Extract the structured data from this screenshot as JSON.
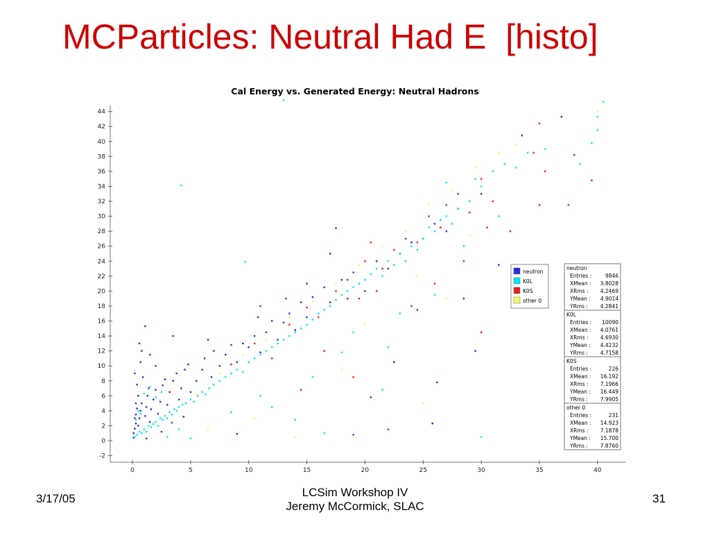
{
  "slide": {
    "title": "MCParticles: Neutral Had E  [histo]",
    "footer_left": "3/17/05",
    "footer_center_line1": "LCSim Workshop IV",
    "footer_center_line2": "Jeremy McCormick, SLAC",
    "footer_right": "31"
  },
  "chart_data": {
    "type": "scatter",
    "title": "Cal Energy vs. Generated Energy: Neutral Hadrons",
    "xlabel": "",
    "ylabel": "",
    "xlim": [
      -1.5,
      42.5
    ],
    "ylim": [
      -2.6,
      45.5
    ],
    "xticks": [
      0,
      5,
      10,
      15,
      20,
      25,
      30,
      35,
      40
    ],
    "yticks": [
      -2,
      0,
      2,
      4,
      6,
      8,
      10,
      12,
      14,
      16,
      18,
      20,
      22,
      24,
      26,
      28,
      30,
      32,
      34,
      36,
      38,
      40,
      42,
      44
    ],
    "legend_position": "right",
    "series": [
      {
        "name": "neutron",
        "color": "#2a2ae0",
        "stats": {
          "Entries": "9846",
          "XMean": "3.8028",
          "XRms": "4.2469",
          "YMean": "4.9014",
          "YRms": "4.2841"
        },
        "points": [
          [
            0.1,
            0.4
          ],
          [
            0.1,
            1.0
          ],
          [
            0.2,
            1.6
          ],
          [
            0.3,
            2.3
          ],
          [
            0.2,
            3.0
          ],
          [
            0.3,
            3.5
          ],
          [
            0.4,
            4.3
          ],
          [
            0.3,
            5.0
          ],
          [
            0.5,
            2.0
          ],
          [
            0.6,
            3.0
          ],
          [
            0.7,
            4.0
          ],
          [
            0.8,
            5.0
          ],
          [
            0.5,
            6.0
          ],
          [
            1.0,
            1.5
          ],
          [
            1.1,
            3.3
          ],
          [
            1.2,
            4.5
          ],
          [
            1.3,
            6.0
          ],
          [
            1.4,
            7.0
          ],
          [
            1.5,
            2.5
          ],
          [
            1.6,
            4.2
          ],
          [
            1.8,
            5.5
          ],
          [
            2.0,
            6.8
          ],
          [
            2.2,
            3.6
          ],
          [
            2.4,
            5.2
          ],
          [
            2.6,
            7.4
          ],
          [
            2.8,
            8.2
          ],
          [
            3.0,
            4.8
          ],
          [
            3.2,
            6.5
          ],
          [
            3.5,
            8.0
          ],
          [
            3.8,
            9.0
          ],
          [
            4.0,
            5.5
          ],
          [
            4.2,
            7.0
          ],
          [
            4.5,
            9.5
          ],
          [
            4.8,
            10.2
          ],
          [
            5.0,
            6.5
          ],
          [
            5.5,
            8.0
          ],
          [
            6.0,
            9.5
          ],
          [
            6.2,
            11.0
          ],
          [
            6.8,
            8.5
          ],
          [
            7.0,
            12.0
          ],
          [
            7.5,
            10.0
          ],
          [
            8.0,
            11.5
          ],
          [
            8.5,
            12.8
          ],
          [
            9.0,
            10.5
          ],
          [
            9.5,
            13.0
          ],
          [
            10.0,
            12.5
          ],
          [
            10.5,
            14.0
          ],
          [
            11.0,
            11.8
          ],
          [
            11.5,
            14.5
          ],
          [
            12.0,
            16.0
          ],
          [
            12.5,
            13.5
          ],
          [
            13.0,
            15.8
          ],
          [
            13.5,
            17.0
          ],
          [
            14.0,
            14.8
          ],
          [
            14.5,
            18.5
          ],
          [
            15.0,
            16.5
          ],
          [
            15.5,
            19.2
          ],
          [
            16.0,
            17.0
          ],
          [
            16.5,
            20.5
          ],
          [
            17.0,
            18.5
          ],
          [
            18.0,
            21.5
          ],
          [
            18.5,
            19.0
          ],
          [
            19.0,
            22.5
          ],
          [
            20.0,
            20.0
          ],
          [
            21.0,
            24.0
          ],
          [
            22.0,
            23.0
          ],
          [
            23.0,
            25.0
          ],
          [
            24.0,
            26.5
          ],
          [
            25.0,
            27.0
          ],
          [
            26.0,
            29.0
          ],
          [
            27.0,
            28.0
          ],
          [
            28.0,
            31.0
          ],
          [
            30.0,
            33.0
          ],
          [
            33.5,
            40.8
          ],
          [
            36.9,
            43.3
          ],
          [
            17.5,
            28.4
          ],
          [
            15.0,
            21.0
          ],
          [
            13.2,
            19.0
          ],
          [
            10.8,
            16.5
          ],
          [
            2.0,
            10.0
          ],
          [
            1.1,
            15.3
          ],
          [
            0.8,
            12.0
          ],
          [
            3.5,
            14.0
          ],
          [
            6.5,
            13.5
          ],
          [
            17.0,
            25.0
          ],
          [
            22.5,
            10.5
          ],
          [
            20.5,
            5.8
          ],
          [
            9.0,
            0.9
          ],
          [
            19.0,
            0.8
          ],
          [
            29.5,
            12.0
          ],
          [
            25.8,
            2.3
          ],
          [
            1.2,
            0.3
          ],
          [
            2.5,
            1.2
          ],
          [
            3.4,
            2.4
          ],
          [
            4.4,
            3.2
          ],
          [
            0.9,
            8.5
          ],
          [
            0.4,
            7.5
          ],
          [
            0.2,
            9.0
          ],
          [
            0.7,
            10.5
          ],
          [
            1.5,
            11.5
          ],
          [
            0.6,
            13.0
          ],
          [
            26.2,
            7.8
          ],
          [
            24.5,
            17.5
          ],
          [
            31.5,
            23.5
          ],
          [
            28.5,
            19.0
          ]
        ]
      },
      {
        "name": "K0L",
        "color": "#00e8ee",
        "stats": {
          "Entries": "10090",
          "XMean": "4.0761",
          "XRms": "4.6930",
          "YMean": "4.4232",
          "YRms": "4.7158"
        },
        "points": [
          [
            0.2,
            0.5
          ],
          [
            0.4,
            0.8
          ],
          [
            0.6,
            1.2
          ],
          [
            0.8,
            1.0
          ],
          [
            1.0,
            1.5
          ],
          [
            1.2,
            1.2
          ],
          [
            1.4,
            2.0
          ],
          [
            1.6,
            1.8
          ],
          [
            1.8,
            2.2
          ],
          [
            2.0,
            2.5
          ],
          [
            2.2,
            2.0
          ],
          [
            2.4,
            3.0
          ],
          [
            2.6,
            2.8
          ],
          [
            2.8,
            3.3
          ],
          [
            3.0,
            3.0
          ],
          [
            3.2,
            3.8
          ],
          [
            3.4,
            3.5
          ],
          [
            3.6,
            4.2
          ],
          [
            3.8,
            4.0
          ],
          [
            4.0,
            4.5
          ],
          [
            4.3,
            4.8
          ],
          [
            4.6,
            5.0
          ],
          [
            5.0,
            5.5
          ],
          [
            5.3,
            5.2
          ],
          [
            5.6,
            6.0
          ],
          [
            6.0,
            6.5
          ],
          [
            6.3,
            6.2
          ],
          [
            6.6,
            7.0
          ],
          [
            7.0,
            7.5
          ],
          [
            7.5,
            8.0
          ],
          [
            8.0,
            8.5
          ],
          [
            8.5,
            9.0
          ],
          [
            9.0,
            9.5
          ],
          [
            9.5,
            9.2
          ],
          [
            10.0,
            10.5
          ],
          [
            10.5,
            11.0
          ],
          [
            11.0,
            11.5
          ],
          [
            11.5,
            12.0
          ],
          [
            12.0,
            12.5
          ],
          [
            12.5,
            13.0
          ],
          [
            13.0,
            13.5
          ],
          [
            13.5,
            14.0
          ],
          [
            14.0,
            14.5
          ],
          [
            14.5,
            15.0
          ],
          [
            15.0,
            15.5
          ],
          [
            15.5,
            16.2
          ],
          [
            16.0,
            17.0
          ],
          [
            16.5,
            17.5
          ],
          [
            17.0,
            18.0
          ],
          [
            17.5,
            18.8
          ],
          [
            18.0,
            19.5
          ],
          [
            18.5,
            20.0
          ],
          [
            19.0,
            20.5
          ],
          [
            19.5,
            21.0
          ],
          [
            20.0,
            21.5
          ],
          [
            20.5,
            22.3
          ],
          [
            21.0,
            23.0
          ],
          [
            21.5,
            22.0
          ],
          [
            22.0,
            24.0
          ],
          [
            22.5,
            23.5
          ],
          [
            23.0,
            25.0
          ],
          [
            23.5,
            24.0
          ],
          [
            24.0,
            26.0
          ],
          [
            24.5,
            25.5
          ],
          [
            25.0,
            27.0
          ],
          [
            25.5,
            28.5
          ],
          [
            26.0,
            28.0
          ],
          [
            26.5,
            29.5
          ],
          [
            27.0,
            30.0
          ],
          [
            27.5,
            29.0
          ],
          [
            28.0,
            31.0
          ],
          [
            29.0,
            32.0
          ],
          [
            30.0,
            34.0
          ],
          [
            31.0,
            36.0
          ],
          [
            32.0,
            37.0
          ],
          [
            33.0,
            36.5
          ],
          [
            34.0,
            38.5
          ],
          [
            35.5,
            39.0
          ],
          [
            38.5,
            37.0
          ],
          [
            39.5,
            39.8
          ],
          [
            40.0,
            41.5
          ],
          [
            40.0,
            43.3
          ],
          [
            4.2,
            34.1
          ],
          [
            9.7,
            23.9
          ],
          [
            13.0,
            45.5
          ],
          [
            40.5,
            45.3
          ],
          [
            1.0,
            6.3
          ],
          [
            1.5,
            7.2
          ],
          [
            2.0,
            5.8
          ],
          [
            2.5,
            6.5
          ],
          [
            0.5,
            4.0
          ],
          [
            0.3,
            2.8
          ],
          [
            0.7,
            3.6
          ],
          [
            3.0,
            0.5
          ],
          [
            4.0,
            1.5
          ],
          [
            5.0,
            0.3
          ],
          [
            8.5,
            3.8
          ],
          [
            12.0,
            4.5
          ],
          [
            14.0,
            2.8
          ],
          [
            16.5,
            1.0
          ],
          [
            21.5,
            6.8
          ],
          [
            30.0,
            0.5
          ],
          [
            26.0,
            19.5
          ],
          [
            23.0,
            17.0
          ],
          [
            19.0,
            14.5
          ],
          [
            27.0,
            34.5
          ],
          [
            29.5,
            35.0
          ],
          [
            31.5,
            30.0
          ],
          [
            28.5,
            26.0
          ],
          [
            22.0,
            12.5
          ],
          [
            18.0,
            11.8
          ],
          [
            15.5,
            8.5
          ],
          [
            11.0,
            6.0
          ]
        ]
      },
      {
        "name": "K0S",
        "color": "#ee1c1c",
        "stats": {
          "Entries": "226",
          "XMean": "16.192",
          "XRms": "7.1966",
          "YMean": "16.449",
          "YRms": "7.9905"
        },
        "points": [
          [
            8.5,
            10.2
          ],
          [
            10.5,
            13.0
          ],
          [
            12.0,
            11.0
          ],
          [
            13.5,
            15.5
          ],
          [
            15.0,
            17.8
          ],
          [
            16.0,
            16.5
          ],
          [
            17.5,
            20.0
          ],
          [
            18.5,
            21.5
          ],
          [
            19.5,
            19.0
          ],
          [
            20.0,
            24.0
          ],
          [
            21.5,
            23.0
          ],
          [
            22.5,
            25.5
          ],
          [
            23.5,
            27.0
          ],
          [
            24.5,
            26.5
          ],
          [
            25.5,
            30.0
          ],
          [
            26.5,
            28.5
          ],
          [
            27.0,
            31.5
          ],
          [
            28.0,
            33.0
          ],
          [
            29.0,
            30.5
          ],
          [
            30.0,
            35.0
          ],
          [
            31.0,
            32.0
          ],
          [
            32.5,
            28.0
          ],
          [
            34.5,
            38.5
          ],
          [
            35.0,
            31.5
          ],
          [
            35.5,
            36.0
          ],
          [
            38.0,
            38.2
          ],
          [
            39.5,
            34.8
          ],
          [
            35.0,
            42.4
          ],
          [
            37.5,
            31.5
          ],
          [
            30.5,
            28.5
          ],
          [
            21.0,
            20.0
          ],
          [
            19.0,
            8.5
          ],
          [
            16.5,
            12.0
          ],
          [
            14.5,
            6.8
          ],
          [
            24.0,
            18.0
          ],
          [
            26.0,
            21.0
          ],
          [
            28.5,
            24.0
          ],
          [
            20.5,
            26.5
          ],
          [
            11.0,
            18.0
          ],
          [
            22.0,
            1.5
          ],
          [
            30.0,
            14.5
          ]
        ]
      },
      {
        "name": "other 0",
        "color": "#f6f66a",
        "stats": {
          "Entries": "231",
          "XMean": "14.923",
          "XRms": "7.1878",
          "YMean": "15.700",
          "YRms": "7.8760"
        },
        "points": [
          [
            3.5,
            2.5
          ],
          [
            5.5,
            6.2
          ],
          [
            7.5,
            9.0
          ],
          [
            9.5,
            11.5
          ],
          [
            11.5,
            13.5
          ],
          [
            13.5,
            16.5
          ],
          [
            15.5,
            18.5
          ],
          [
            17.5,
            21.0
          ],
          [
            19.5,
            23.5
          ],
          [
            21.5,
            26.0
          ],
          [
            23.5,
            28.0
          ],
          [
            25.5,
            31.5
          ],
          [
            27.5,
            33.5
          ],
          [
            29.5,
            36.5
          ],
          [
            31.5,
            38.5
          ],
          [
            33.5,
            41.0
          ],
          [
            40.0,
            44.0
          ],
          [
            14.0,
            0.5
          ],
          [
            25.0,
            5.0
          ],
          [
            18.0,
            9.5
          ],
          [
            10.5,
            3.0
          ],
          [
            6.5,
            1.5
          ],
          [
            29.0,
            27.5
          ],
          [
            24.5,
            22.0
          ],
          [
            33.0,
            39.5
          ],
          [
            20.0,
            15.5
          ],
          [
            27.0,
            19.0
          ]
        ]
      }
    ]
  }
}
